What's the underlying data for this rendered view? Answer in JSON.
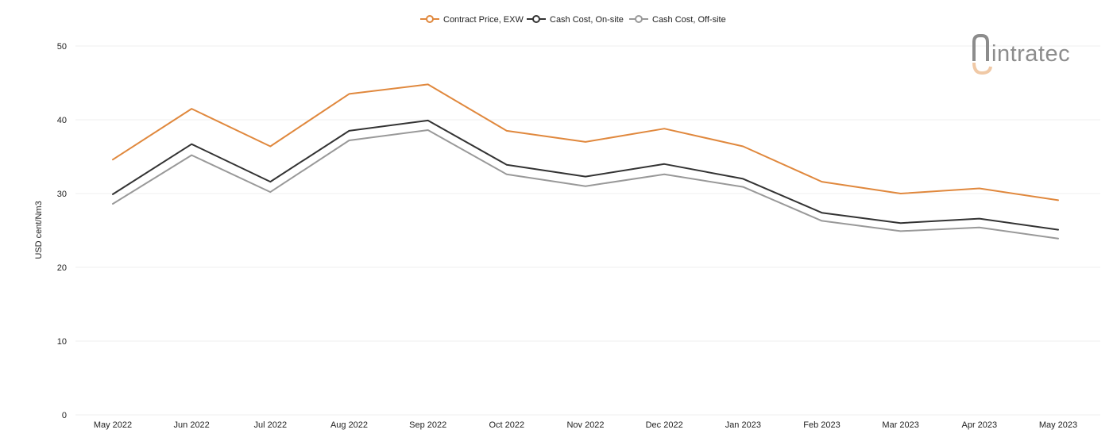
{
  "logo": {
    "text": "intratec"
  },
  "chart_data": {
    "type": "line",
    "title": "",
    "xlabel": "",
    "ylabel": "USD cent/Nm3",
    "ylim": [
      0,
      50
    ],
    "yticks": [
      0,
      10,
      20,
      30,
      40,
      50
    ],
    "grid": true,
    "legend_position": "top-center",
    "categories": [
      "May 2022",
      "Jun 2022",
      "Jul 2022",
      "Aug 2022",
      "Sep 2022",
      "Oct 2022",
      "Nov 2022",
      "Dec 2022",
      "Jan 2023",
      "Feb 2023",
      "Mar 2023",
      "Apr 2023",
      "May 2023"
    ],
    "series": [
      {
        "name": "Contract Price, EXW",
        "color": "#e0883d",
        "values": [
          34.6,
          41.5,
          36.4,
          43.5,
          44.8,
          38.5,
          37.0,
          38.8,
          36.4,
          31.6,
          30.0,
          30.7,
          29.1
        ]
      },
      {
        "name": "Cash Cost, On-site",
        "color": "#333333",
        "values": [
          29.9,
          36.7,
          31.6,
          38.5,
          39.9,
          33.9,
          32.3,
          34.0,
          32.0,
          27.4,
          26.0,
          26.6,
          25.1
        ]
      },
      {
        "name": "Cash Cost, Off-site",
        "color": "#999999",
        "values": [
          28.6,
          35.2,
          30.2,
          37.2,
          38.6,
          32.6,
          31.0,
          32.6,
          30.9,
          26.3,
          24.9,
          25.4,
          23.9
        ]
      }
    ]
  }
}
